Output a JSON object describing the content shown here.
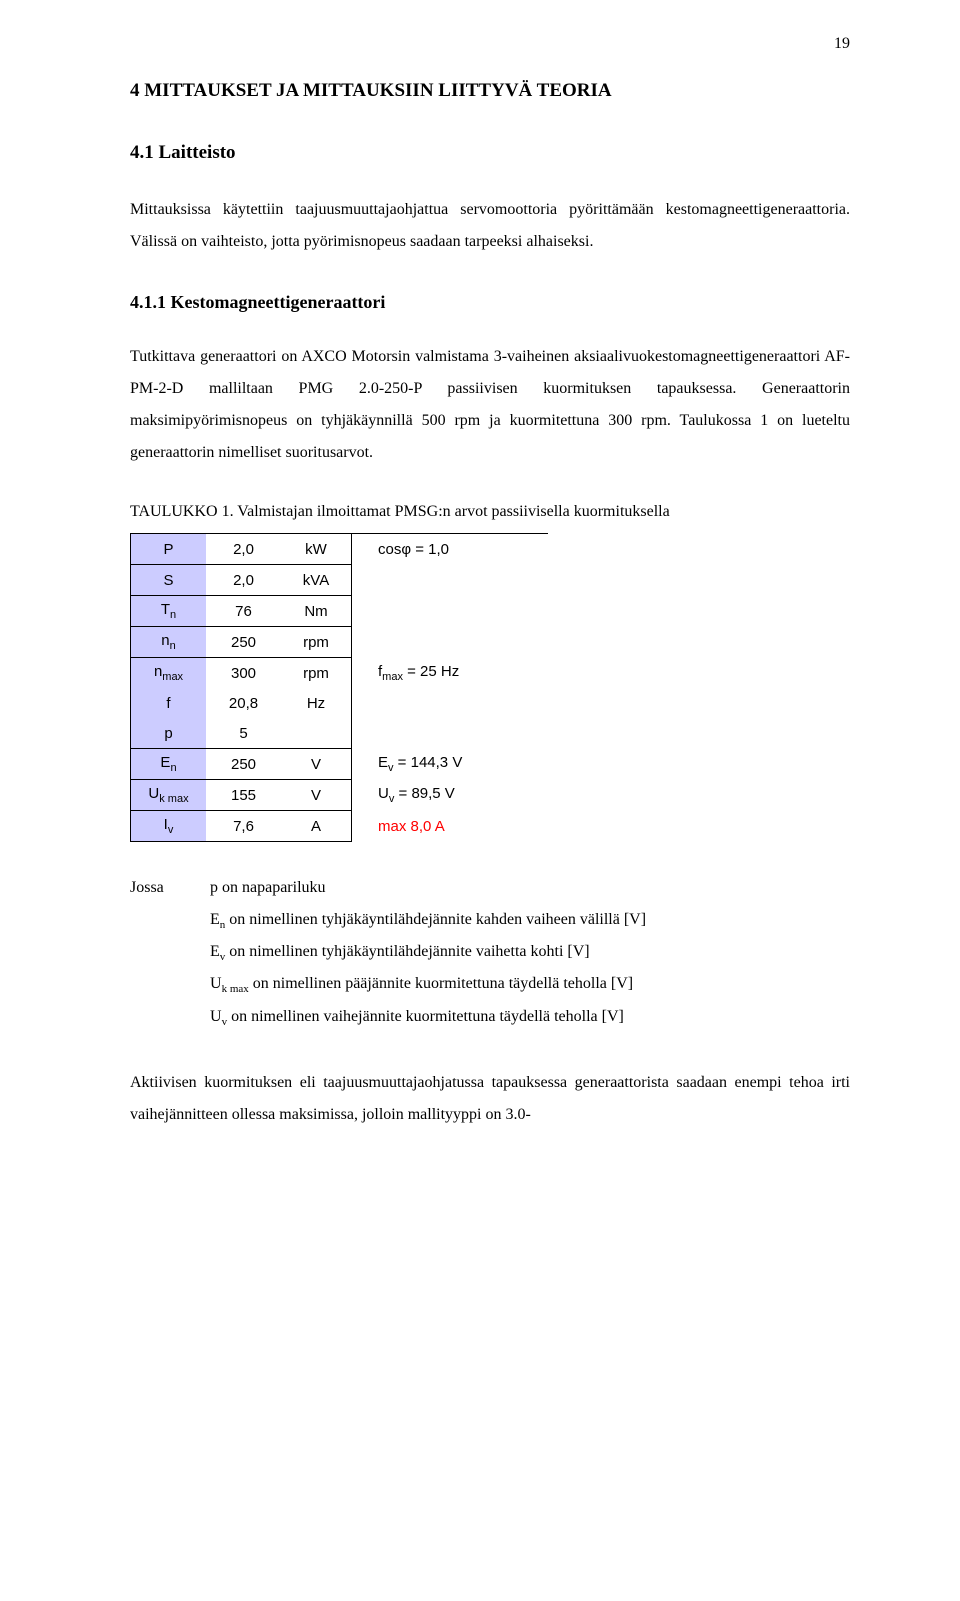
{
  "page_number": "19",
  "h1": "4   MITTAUKSET JA MITTAUKSIIN LIITTYVÄ TEORIA",
  "h2": "4.1   Laitteisto",
  "h3": "4.1.1   Kestomagneettigeneraattori",
  "para1": "Mittauksissa käytettiin taajuusmuuttajaohjattua servomoottoria pyörittämään kestomagneettigeneraattoria. Välissä on vaihteisto, jotta pyörimisnopeus saadaan tarpeeksi alhaiseksi.",
  "para2": "Tutkittava generaattori on AXCO Motorsin valmistama 3-vaiheinen aksiaalivuokestomagneettigeneraattori AF-PM-2-D malliltaan PMG 2.0-250-P passiivisen kuormituksen tapauksessa. Generaattorin maksimipyörimisnopeus on tyhjäkäynnillä 500 rpm ja kuormitettuna 300 rpm. Taulukossa 1 on lueteltu generaattorin nimelliset suoritusarvot.",
  "table_caption": "TAULUKKO 1. Valmistajan ilmoittamat PMSG:n arvot passiivisella kuormituksella",
  "table": {
    "rows": [
      {
        "sym_html": "P",
        "val": "2,0",
        "unit": "kW",
        "extra_html": "cosφ = 1,0",
        "extra_red": false
      },
      {
        "sym_html": "S",
        "val": "2,0",
        "unit": "kVA",
        "extra_html": "",
        "extra_red": false
      },
      {
        "sym_html": "T<span class=\"sub\">n</span>",
        "val": "76",
        "unit": "Nm",
        "extra_html": "",
        "extra_red": false
      },
      {
        "sym_html": "n<span class=\"sub\">n</span>",
        "val": "250",
        "unit": "rpm",
        "extra_html": "",
        "extra_red": false
      },
      {
        "sym_html": "n<span class=\"sub\">max</span>",
        "val": "300",
        "unit": "rpm",
        "extra_html": "f<span class=\"sub\">max</span> = 25 Hz",
        "extra_red": false,
        "group": "top"
      },
      {
        "sym_html": "f",
        "val": "20,8",
        "unit": "Hz",
        "extra_html": "",
        "extra_red": false,
        "group": "mid"
      },
      {
        "sym_html": "p",
        "val": "5",
        "unit": "",
        "extra_html": "",
        "extra_red": false,
        "group": "bot"
      },
      {
        "sym_html": "E<span class=\"sub\">n</span>",
        "val": "250",
        "unit": "V",
        "extra_html": "E<span class=\"sub\">v</span> = 144,3 V",
        "extra_red": false
      },
      {
        "sym_html": "U<span class=\"sub\">k max</span>",
        "val": "155",
        "unit": "V",
        "extra_html": "U<span class=\"sub\">v</span> = 89,5 V",
        "extra_red": false
      },
      {
        "sym_html": "I<span class=\"sub\">v</span>",
        "val": "7,6",
        "unit": "A",
        "extra_html": "max 8,0 A",
        "extra_red": true
      }
    ]
  },
  "defs": {
    "lead": "Jossa",
    "items": [
      "p on napapariluku",
      "E<span class=\"sub\">n</span> on nimellinen tyhjäkäyntilähdejännite kahden vaiheen välillä [V]",
      "E<span class=\"sub\">v</span> on nimellinen tyhjäkäyntilähdejännite vaihetta kohti [V]",
      "U<span class=\"sub\">k max</span> on nimellinen pääjännite kuormitettuna täydellä teholla [V]",
      "U<span class=\"sub\">v</span> on nimellinen vaihejännite kuormitettuna täydellä teholla [V]"
    ]
  },
  "para3": "Aktiivisen kuormituksen eli taajuusmuuttajaohjatussa tapauksessa generaattorista saadaan enempi tehoa irti vaihejännitteen ollessa maksimissa, jolloin mallityyppi on 3.0-"
}
